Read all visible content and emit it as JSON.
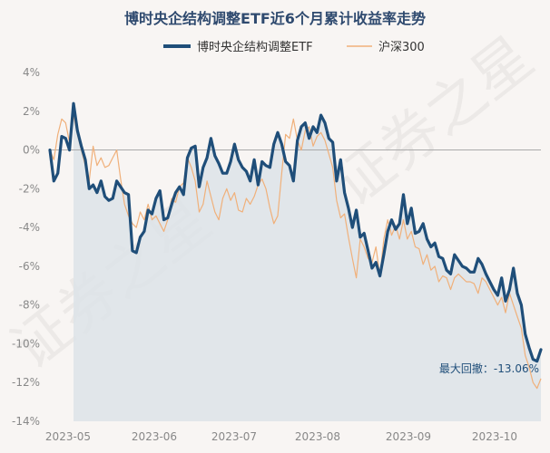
{
  "chart_data": {
    "type": "line",
    "title": "博时央企结构调整ETF近6个月累计收益率走势",
    "xlabel": "",
    "ylabel": "",
    "ylim": [
      -14,
      4
    ],
    "y_ticks": [
      4,
      2,
      0,
      -2,
      -4,
      -6,
      -8,
      -10,
      -12,
      -14
    ],
    "y_tick_labels": [
      "4%",
      "2%",
      "0%",
      "-2%",
      "-4%",
      "-6%",
      "-8%",
      "-10%",
      "-12%",
      "-14%"
    ],
    "x_ticks": [
      "2023-05",
      "2023-06",
      "2023-07",
      "2023-08",
      "2023-09",
      "2023-10"
    ],
    "grid": false,
    "legend_position": "top-center",
    "annotation": "最大回撤：-13.06%",
    "watermark": "证券之星",
    "colors": {
      "etf": "#1f4e79",
      "benchmark": "#f0b07a",
      "fill": "#dde3e8",
      "zero_line": "#aaaaaa"
    },
    "series": [
      {
        "name": "博时央企结构调整ETF",
        "values": [
          0.0,
          -1.6,
          -1.2,
          0.7,
          0.6,
          0.0,
          2.4,
          1.0,
          0.2,
          -0.5,
          -2.0,
          -1.8,
          -2.2,
          -1.6,
          -2.4,
          -2.6,
          -2.5,
          -1.6,
          -1.9,
          -2.2,
          -2.3,
          -5.2,
          -5.3,
          -4.5,
          -4.2,
          -3.1,
          -3.3,
          -2.5,
          -2.1,
          -3.6,
          -3.5,
          -2.8,
          -2.2,
          -1.9,
          -2.3,
          -0.4,
          0.1,
          0.2,
          -1.9,
          -0.9,
          -0.4,
          0.6,
          -0.3,
          -0.7,
          -1.2,
          -1.2,
          -0.6,
          0.3,
          -0.5,
          -0.9,
          -1.1,
          -1.6,
          -0.5,
          -1.8,
          -0.6,
          -0.8,
          -0.9,
          0.3,
          0.9,
          0.3,
          -0.6,
          -0.8,
          -1.6,
          0.5,
          1.2,
          1.4,
          0.6,
          1.2,
          0.9,
          1.8,
          1.4,
          0.6,
          0.4,
          -1.6,
          -0.5,
          -2.2,
          -3.0,
          -4.0,
          -3.1,
          -4.5,
          -4.3,
          -5.2,
          -6.1,
          -5.8,
          -6.5,
          -5.4,
          -4.2,
          -3.6,
          -4.1,
          -3.8,
          -2.3,
          -3.8,
          -3.0,
          -4.3,
          -4.2,
          -3.8,
          -4.6,
          -5.0,
          -4.8,
          -5.5,
          -5.6,
          -6.2,
          -6.4,
          -5.4,
          -5.7,
          -6.0,
          -6.1,
          -6.3,
          -6.3,
          -5.6,
          -5.9,
          -6.4,
          -6.8,
          -7.2,
          -7.5,
          -6.6,
          -7.8,
          -7.2,
          -6.1,
          -7.4,
          -8.0,
          -9.5,
          -10.2,
          -10.8,
          -10.9,
          -10.3
        ]
      },
      {
        "name": "沪深300",
        "values": [
          0.0,
          -0.5,
          0.8,
          1.6,
          1.4,
          0.4,
          1.8,
          0.8,
          0.0,
          -0.8,
          -1.6,
          0.2,
          -0.8,
          -0.4,
          -0.9,
          -0.8,
          -0.4,
          0.0,
          -1.5,
          -2.8,
          -3.4,
          -3.8,
          -4.0,
          -3.2,
          -3.6,
          -2.8,
          -3.6,
          -3.4,
          -3.8,
          -4.2,
          -3.6,
          -2.5,
          -2.7,
          -1.9,
          -1.7,
          -0.4,
          -0.9,
          -1.6,
          -3.2,
          -2.8,
          -1.6,
          -2.4,
          -3.2,
          -3.6,
          -2.5,
          -2.0,
          -2.6,
          -2.2,
          -3.1,
          -3.2,
          -2.5,
          -2.8,
          -2.4,
          -1.8,
          -1.5,
          -2.0,
          -3.0,
          -3.8,
          -3.4,
          -1.2,
          0.8,
          0.6,
          1.6,
          0.5,
          0.0,
          1.0,
          1.2,
          0.2,
          0.7,
          0.9,
          0.5,
          -0.2,
          -0.9,
          -2.6,
          -3.5,
          -3.3,
          -4.5,
          -5.6,
          -6.6,
          -4.6,
          -5.0,
          -5.6,
          -5.8,
          -5.0,
          -6.5,
          -4.6,
          -3.6,
          -4.4,
          -3.9,
          -4.6,
          -3.6,
          -4.6,
          -4.2,
          -5.0,
          -5.1,
          -5.9,
          -5.4,
          -6.2,
          -6.0,
          -6.8,
          -6.5,
          -6.6,
          -7.2,
          -6.6,
          -6.4,
          -6.6,
          -6.8,
          -6.8,
          -6.9,
          -7.4,
          -6.6,
          -6.8,
          -7.2,
          -7.6,
          -8.0,
          -7.6,
          -8.4,
          -7.4,
          -8.0,
          -8.6,
          -9.2,
          -10.6,
          -11.2,
          -12.0,
          -12.3,
          -11.8
        ]
      }
    ]
  }
}
